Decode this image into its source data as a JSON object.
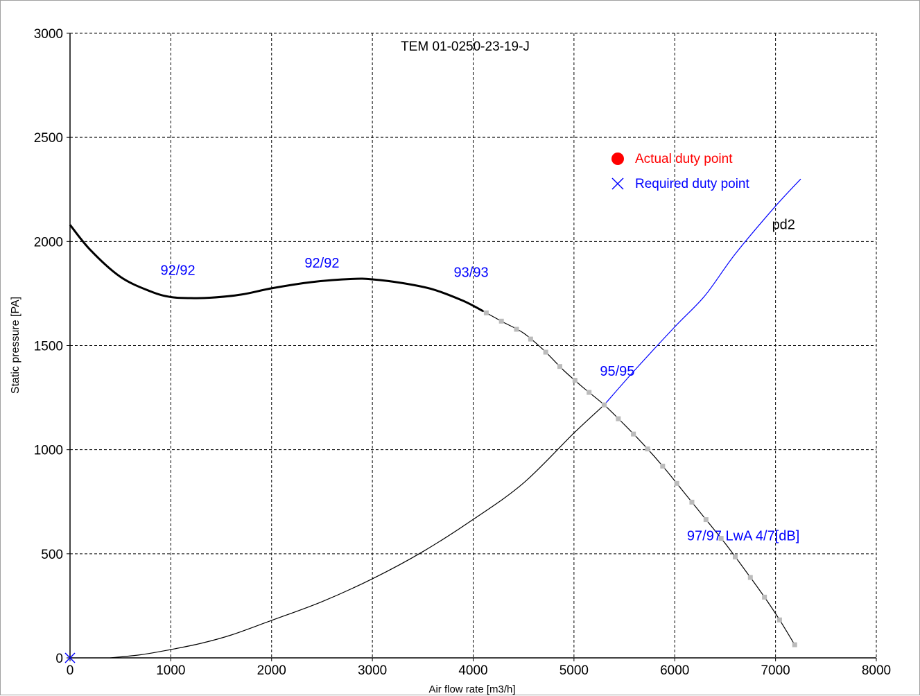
{
  "chart_data": {
    "type": "line",
    "title": "TEM 01-0250-23-19-J",
    "xlabel": "Air flow rate [m3/h]",
    "ylabel": "Static pressure [PA]",
    "xlim": [
      0,
      8000
    ],
    "ylim": [
      0,
      3000
    ],
    "x_ticks": [
      "0",
      "1000",
      "2000",
      "3000",
      "4000",
      "5000",
      "6000",
      "7000",
      "8000"
    ],
    "y_ticks": [
      "0",
      "500",
      "1000",
      "1500",
      "2000",
      "2500",
      "3000"
    ],
    "x_tick_values": [
      0,
      1000,
      2000,
      3000,
      4000,
      5000,
      6000,
      7000,
      8000
    ],
    "y_tick_values": [
      0,
      500,
      1000,
      1500,
      2000,
      2500,
      3000
    ],
    "grid": true,
    "legend_position": "top-right",
    "legend": [
      {
        "label": "Actual duty point",
        "marker": "filled-circle",
        "color": "#ff0000"
      },
      {
        "label": "Required duty point",
        "marker": "x",
        "color": "#0000ff"
      }
    ],
    "series": [
      {
        "role": "fan-curve-thick",
        "color": "#000000",
        "points": [
          [
            0,
            2080
          ],
          [
            200,
            1960
          ],
          [
            500,
            1830
          ],
          [
            800,
            1760
          ],
          [
            1000,
            1733
          ],
          [
            1200,
            1728
          ],
          [
            1400,
            1730
          ],
          [
            1700,
            1745
          ],
          [
            2000,
            1775
          ],
          [
            2400,
            1805
          ],
          [
            2800,
            1820
          ],
          [
            3000,
            1818
          ],
          [
            3300,
            1800
          ],
          [
            3600,
            1770
          ],
          [
            3900,
            1715
          ],
          [
            4100,
            1665
          ]
        ]
      },
      {
        "role": "fan-curve-thin",
        "color": "#000000",
        "points": [
          [
            4100,
            1665
          ],
          [
            4300,
            1612
          ],
          [
            4500,
            1560
          ],
          [
            4700,
            1478
          ],
          [
            4900,
            1380
          ],
          [
            5100,
            1295
          ],
          [
            5300,
            1215
          ],
          [
            5500,
            1120
          ],
          [
            5700,
            1020
          ],
          [
            5900,
            910
          ],
          [
            6100,
            790
          ],
          [
            6300,
            670
          ],
          [
            6500,
            550
          ],
          [
            6700,
            420
          ],
          [
            6900,
            285
          ],
          [
            7050,
            175
          ],
          [
            7200,
            55
          ]
        ]
      },
      {
        "role": "system-curve-black",
        "color": "#000000",
        "points": [
          [
            400,
            0
          ],
          [
            700,
            15
          ],
          [
            1000,
            40
          ],
          [
            1300,
            70
          ],
          [
            1600,
            110
          ],
          [
            2000,
            180
          ],
          [
            2500,
            270
          ],
          [
            3000,
            380
          ],
          [
            3500,
            510
          ],
          [
            4000,
            665
          ],
          [
            4500,
            840
          ],
          [
            5000,
            1080
          ],
          [
            5300,
            1215
          ]
        ]
      },
      {
        "role": "system-curve-blue",
        "color": "#0000ff",
        "points": [
          [
            5300,
            1215
          ],
          [
            5600,
            1380
          ],
          [
            6000,
            1590
          ],
          [
            6300,
            1740
          ],
          [
            6600,
            1940
          ],
          [
            7000,
            2170
          ],
          [
            7250,
            2300
          ]
        ]
      }
    ],
    "fan_curve_markers": {
      "color": "#bbbbbb",
      "x": [
        4130,
        4280,
        4430,
        4570,
        4720,
        4860,
        5010,
        5150,
        5300,
        5440,
        5590,
        5730,
        5880,
        6020,
        6170,
        6310,
        6460,
        6600,
        6750,
        6890,
        7040,
        7190
      ]
    },
    "required_duty_point": {
      "x": 0,
      "y": 0
    },
    "annotations": [
      {
        "text": "92/92",
        "x": 1070,
        "y": 1840,
        "color": "#0000ff"
      },
      {
        "text": "92/92",
        "x": 2500,
        "y": 1875,
        "color": "#0000ff"
      },
      {
        "text": "93/93",
        "x": 3980,
        "y": 1830,
        "color": "#0000ff"
      },
      {
        "text": "95/95",
        "x": 5430,
        "y": 1355,
        "color": "#0000ff"
      },
      {
        "text": "97/97 LwA 4/7[dB]",
        "x": 6680,
        "y": 565,
        "color": "#0000ff"
      },
      {
        "text": "pd2",
        "x": 7080,
        "y": 2060,
        "color": "#000000"
      }
    ]
  }
}
